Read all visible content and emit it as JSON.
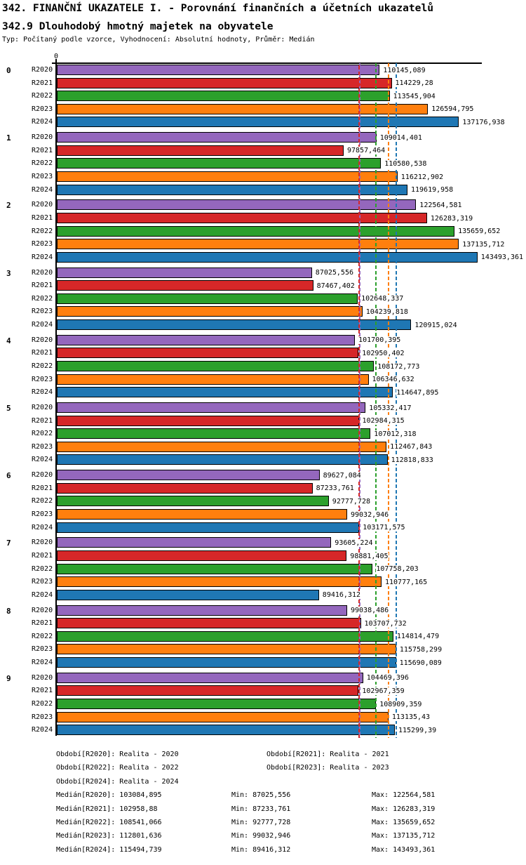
{
  "title": "342. FINANČNÍ UKAZATELE I. - Porovnání finančních a účetních ukazatelů",
  "subtitle": "342.9 Dlouhodobý hmotný majetek na obyvatele",
  "meta": "Typ: Počítaný podle vzorce, Vyhodnocení: Absolutní hodnoty, Průměr: Medián",
  "chart_data": {
    "type": "bar",
    "orientation": "horizontal",
    "title": "342.9 Dlouhodobý hmotný majetek na obyvatele",
    "axis": {
      "origin_label": "0",
      "xmin": 0,
      "xmax": 145000,
      "grid": false
    },
    "series_names": [
      "R2020",
      "R2021",
      "R2022",
      "R2023",
      "R2024"
    ],
    "series_colors": [
      "#9467bd",
      "#d62728",
      "#2ca02c",
      "#ff7f0e",
      "#1f77b4"
    ],
    "group_labels": [
      "0",
      "1",
      "2",
      "3",
      "4",
      "5",
      "6",
      "7",
      "8",
      "9"
    ],
    "groups": [
      {
        "label": "0",
        "values": [
          110145.089,
          114229.28,
          113545.904,
          126594.795,
          137176.938
        ],
        "value_labels": [
          "110145,089",
          "114229,28",
          "113545,904",
          "126594,795",
          "137176,938"
        ]
      },
      {
        "label": "1",
        "values": [
          109014.401,
          97857.464,
          110580.538,
          116212.902,
          119619.958
        ],
        "value_labels": [
          "109014,401",
          "97857,464",
          "110580,538",
          "116212,902",
          "119619,958"
        ]
      },
      {
        "label": "2",
        "values": [
          122564.581,
          126283.319,
          135659.652,
          137135.712,
          143493.361
        ],
        "value_labels": [
          "122564,581",
          "126283,319",
          "135659,652",
          "137135,712",
          "143493,361"
        ]
      },
      {
        "label": "3",
        "values": [
          87025.556,
          87467.402,
          102648.337,
          104239.818,
          120915.024
        ],
        "value_labels": [
          "87025,556",
          "87467,402",
          "102648,337",
          "104239,818",
          "120915,024"
        ]
      },
      {
        "label": "4",
        "values": [
          101700.395,
          102950.402,
          108172.773,
          106346.632,
          114647.895
        ],
        "value_labels": [
          "101700,395",
          "102950,402",
          "108172,773",
          "106346,632",
          "114647,895"
        ]
      },
      {
        "label": "5",
        "values": [
          105332.417,
          102984.315,
          107012.318,
          112467.843,
          112818.833
        ],
        "value_labels": [
          "105332,417",
          "102984,315",
          "107012,318",
          "112467,843",
          "112818,833"
        ]
      },
      {
        "label": "6",
        "values": [
          89627.084,
          87233.761,
          92777.728,
          99032.946,
          103171.575
        ],
        "value_labels": [
          "89627,084",
          "87233,761",
          "92777,728",
          "99032,946",
          "103171,575"
        ]
      },
      {
        "label": "7",
        "values": [
          93605.224,
          98881.405,
          107758.203,
          110777.165,
          89416.312
        ],
        "value_labels": [
          "93605,224",
          "98881,405",
          "107758,203",
          "110777,165",
          "89416,312"
        ]
      },
      {
        "label": "8",
        "values": [
          99038.486,
          103707.732,
          114814.479,
          115758.299,
          115690.089
        ],
        "value_labels": [
          "99038,486",
          "103707,732",
          "114814,479",
          "115758,299",
          "115690,089"
        ]
      },
      {
        "label": "9",
        "values": [
          104469.396,
          102967.359,
          108909.359,
          113135.43,
          115299.39
        ],
        "value_labels": [
          "104469,396",
          "102967,359",
          "108909,359",
          "113135,43",
          "115299,39"
        ]
      }
    ],
    "median_lines": {
      "values": [
        103084.895,
        102958.88,
        108541.066,
        112801.636,
        115494.739
      ],
      "colors": [
        "#9467bd",
        "#d62728",
        "#2ca02c",
        "#ff7f0e",
        "#1f77b4"
      ],
      "style": "dashed"
    },
    "legend_position": "bottom"
  },
  "legend": {
    "period_rows": [
      [
        "Období[R2020]: Realita - 2020",
        "Období[R2021]: Realita - 2021"
      ],
      [
        "Období[R2022]: Realita - 2022",
        "Období[R2023]: Realita - 2023"
      ],
      [
        "Období[R2024]: Realita - 2024"
      ]
    ],
    "stat_rows": [
      {
        "median": "Medián[R2020]: 103084,895",
        "min": "Min: 87025,556",
        "max": "Max: 122564,581"
      },
      {
        "median": "Medián[R2021]: 102958,88",
        "min": "Min: 87233,761",
        "max": "Max: 126283,319"
      },
      {
        "median": "Medián[R2022]: 108541,066",
        "min": "Min: 92777,728",
        "max": "Max: 135659,652"
      },
      {
        "median": "Medián[R2023]: 112801,636",
        "min": "Min: 99032,946",
        "max": "Max: 137135,712"
      },
      {
        "median": "Medián[R2024]: 115494,739",
        "min": "Min: 89416,312",
        "max": "Max: 143493,361"
      }
    ]
  }
}
